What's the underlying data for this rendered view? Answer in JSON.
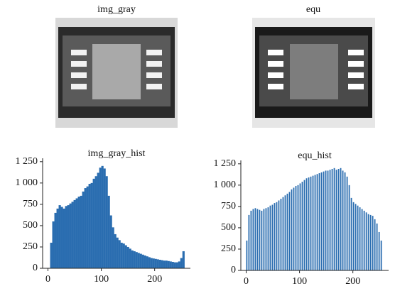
{
  "chart_data": [
    {
      "type": "image",
      "title": "img_gray"
    },
    {
      "type": "image",
      "title": "equ"
    },
    {
      "type": "histogram",
      "title": "img_gray_hist",
      "color": "#2a6db0",
      "x": [
        0,
        4,
        8,
        12,
        16,
        20,
        24,
        28,
        32,
        36,
        40,
        44,
        48,
        52,
        56,
        60,
        64,
        68,
        72,
        76,
        80,
        84,
        88,
        92,
        96,
        100,
        104,
        108,
        112,
        116,
        120,
        124,
        128,
        132,
        136,
        140,
        144,
        148,
        152,
        156,
        160,
        164,
        168,
        172,
        176,
        180,
        184,
        188,
        192,
        196,
        200,
        204,
        208,
        212,
        216,
        220,
        224,
        228,
        232,
        236,
        240,
        244,
        248,
        252
      ],
      "values": [
        0,
        300,
        550,
        650,
        700,
        740,
        720,
        700,
        730,
        740,
        760,
        780,
        800,
        820,
        840,
        850,
        900,
        940,
        960,
        990,
        1000,
        1050,
        1080,
        1120,
        1180,
        1200,
        1170,
        1080,
        850,
        620,
        480,
        400,
        360,
        330,
        300,
        290,
        270,
        250,
        230,
        210,
        200,
        190,
        180,
        170,
        160,
        150,
        140,
        130,
        120,
        115,
        110,
        105,
        100,
        95,
        90,
        90,
        85,
        80,
        75,
        70,
        70,
        80,
        120,
        200
      ],
      "xlim": [
        -10,
        267
      ],
      "xticks": [
        0,
        100,
        200
      ],
      "ylim": [
        0,
        1290
      ],
      "yticks": [
        0,
        250,
        500,
        750,
        {
          "value": 1000,
          "label": "1 000"
        },
        {
          "value": 1250,
          "label": "1 250"
        }
      ]
    },
    {
      "type": "histogram",
      "title": "equ_hist",
      "color": "#2a6db0",
      "x": [
        0,
        4,
        8,
        12,
        16,
        20,
        24,
        28,
        32,
        36,
        40,
        44,
        48,
        52,
        56,
        60,
        64,
        68,
        72,
        76,
        80,
        84,
        88,
        92,
        96,
        100,
        104,
        108,
        112,
        116,
        120,
        124,
        128,
        132,
        136,
        140,
        144,
        148,
        152,
        156,
        160,
        164,
        168,
        172,
        176,
        180,
        184,
        188,
        192,
        196,
        200,
        204,
        208,
        212,
        216,
        220,
        224,
        228,
        232,
        236,
        240,
        244,
        248,
        252
      ],
      "values": [
        350,
        650,
        700,
        720,
        730,
        720,
        710,
        700,
        720,
        730,
        740,
        760,
        770,
        790,
        800,
        820,
        840,
        860,
        880,
        900,
        920,
        950,
        970,
        990,
        1000,
        1020,
        1040,
        1060,
        1080,
        1090,
        1100,
        1110,
        1120,
        1130,
        1140,
        1150,
        1160,
        1170,
        1170,
        1180,
        1190,
        1200,
        1180,
        1190,
        1200,
        1170,
        1150,
        1100,
        1000,
        850,
        800,
        780,
        760,
        740,
        720,
        700,
        680,
        660,
        650,
        640,
        600,
        550,
        450,
        350
      ],
      "xlim": [
        -10,
        267
      ],
      "xticks": [
        0,
        100,
        200
      ],
      "ylim": [
        0,
        1290
      ],
      "yticks": [
        0,
        250,
        500,
        750,
        {
          "value": 1000,
          "label": "1 000"
        },
        {
          "value": 1250,
          "label": "1 250"
        }
      ]
    }
  ]
}
